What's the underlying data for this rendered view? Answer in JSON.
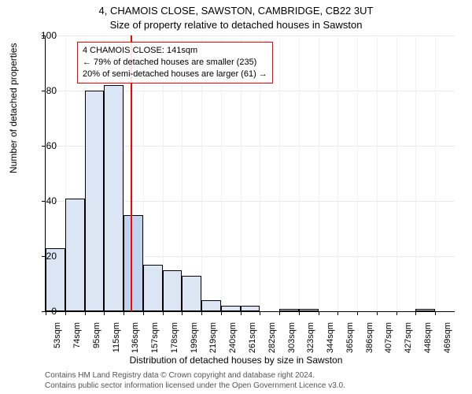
{
  "title_line1": "4, CHAMOIS CLOSE, SAWSTON, CAMBRIDGE, CB22 3UT",
  "title_line2": "Size of property relative to detached houses in Sawston",
  "ylabel": "Number of detached properties",
  "xlabel": "Distribution of detached houses by size in Sawston",
  "chart": {
    "type": "histogram",
    "ylim": [
      0,
      100
    ],
    "ytick_step": 20,
    "yticks": [
      0,
      20,
      40,
      60,
      80,
      100
    ],
    "background_color": "#ffffff",
    "grid_color": "#e9e9e9",
    "bar_fill": "#dbe5f4",
    "bar_fill_highlight": "#c1d3ee",
    "bar_border": "#000000",
    "marker_color": "#ff0000",
    "bins": [
      {
        "label": "53sqm",
        "value": 23
      },
      {
        "label": "74sqm",
        "value": 41
      },
      {
        "label": "95sqm",
        "value": 80
      },
      {
        "label": "115sqm",
        "value": 82
      },
      {
        "label": "136sqm",
        "value": 35,
        "highlight": true
      },
      {
        "label": "157sqm",
        "value": 17
      },
      {
        "label": "178sqm",
        "value": 15
      },
      {
        "label": "199sqm",
        "value": 13
      },
      {
        "label": "219sqm",
        "value": 4
      },
      {
        "label": "240sqm",
        "value": 2
      },
      {
        "label": "261sqm",
        "value": 2
      },
      {
        "label": "282sqm",
        "value": 0
      },
      {
        "label": "303sqm",
        "value": 1
      },
      {
        "label": "323sqm",
        "value": 1
      },
      {
        "label": "344sqm",
        "value": 0
      },
      {
        "label": "365sqm",
        "value": 0
      },
      {
        "label": "386sqm",
        "value": 0
      },
      {
        "label": "407sqm",
        "value": 0
      },
      {
        "label": "427sqm",
        "value": 0
      },
      {
        "label": "448sqm",
        "value": 1
      },
      {
        "label": "469sqm",
        "value": 0
      }
    ],
    "marker_bin_index": 4,
    "annotation": {
      "line1": "4 CHAMOIS CLOSE: 141sqm",
      "line2": "← 79% of detached houses are smaller (235)",
      "line3": "20% of semi-detached houses are larger (61) →"
    }
  },
  "footer": {
    "line1": "Contains HM Land Registry data © Crown copyright and database right 2024.",
    "line2": "Contains public sector information licensed under the Open Government Licence v3.0."
  }
}
